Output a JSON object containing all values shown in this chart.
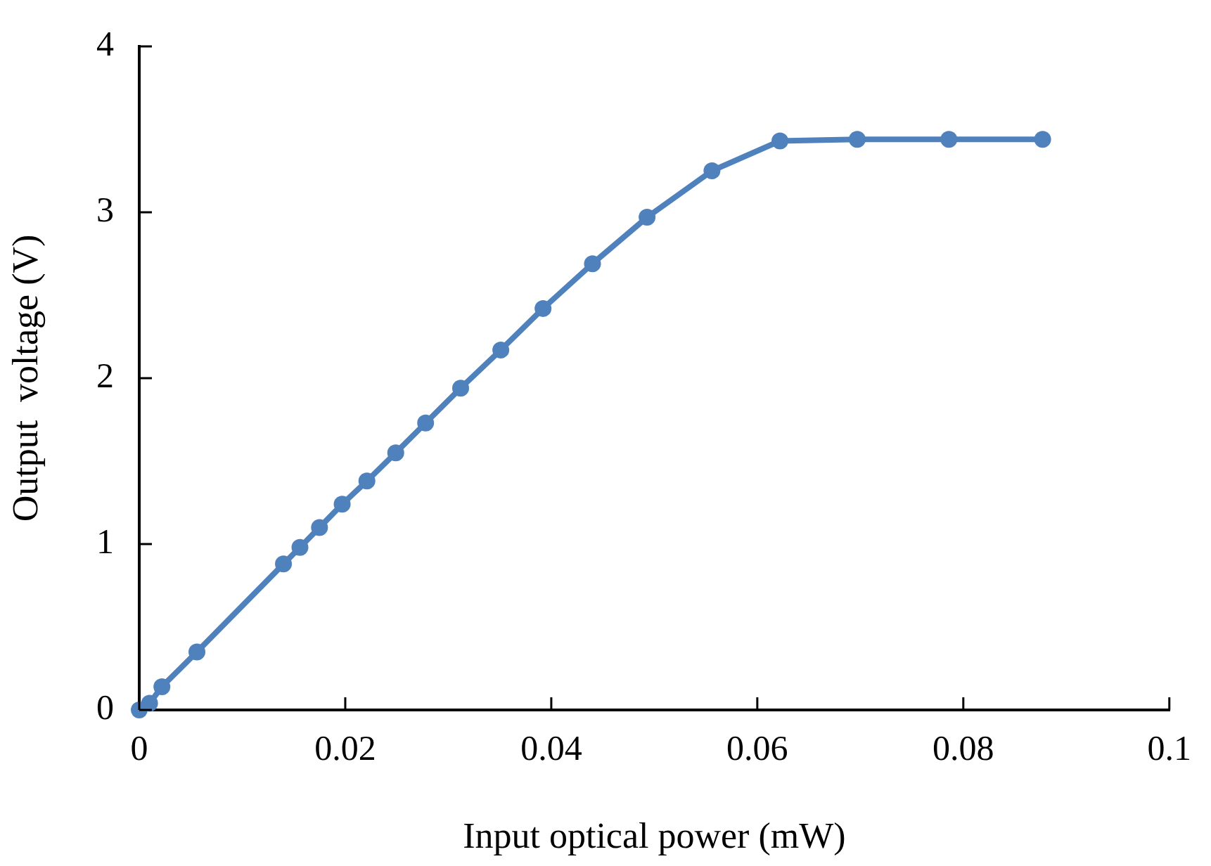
{
  "chart_data": {
    "type": "line",
    "xlabel": "Input optical power (mW)",
    "ylabel": "Output  voltage (V)",
    "x": [
      0,
      0.001,
      0.0022,
      0.0056,
      0.014,
      0.0156,
      0.0175,
      0.0197,
      0.0221,
      0.0249,
      0.0278,
      0.0312,
      0.0351,
      0.0392,
      0.044,
      0.0493,
      0.0556,
      0.0622,
      0.0697,
      0.0786,
      0.0877
    ],
    "series": [
      {
        "color": "#4f81bd",
        "values": [
          0,
          0.04,
          0.14,
          0.35,
          0.88,
          0.98,
          1.1,
          1.24,
          1.38,
          1.55,
          1.73,
          1.94,
          2.17,
          2.42,
          2.69,
          2.97,
          3.25,
          3.43,
          3.44,
          3.44,
          3.44
        ]
      }
    ],
    "xlim": [
      0,
      0.1
    ],
    "xticks": [
      0,
      0.02,
      0.04,
      0.06,
      0.08,
      0.1
    ],
    "ylim": [
      0,
      4
    ],
    "yticks": [
      0,
      1,
      2,
      3,
      4
    ],
    "grid": false,
    "legend": false,
    "marker": "circle",
    "line_style": "solid"
  }
}
